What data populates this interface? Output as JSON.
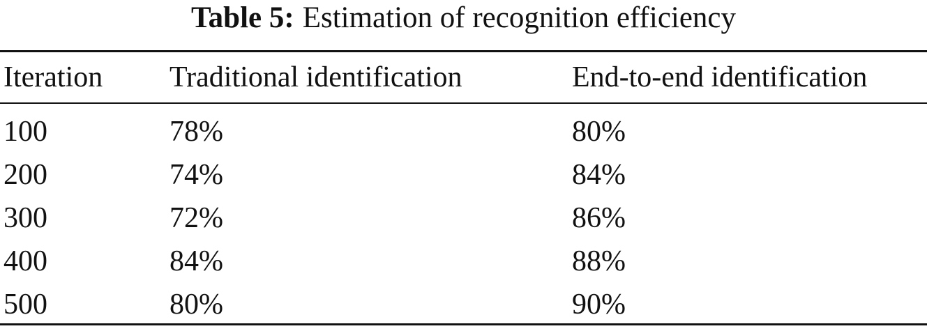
{
  "caption": {
    "label": "Table 5:",
    "text": "Estimation of recognition efficiency"
  },
  "table": {
    "header": [
      "Iteration",
      "Traditional identification",
      "End-to-end identification"
    ],
    "rows": [
      [
        "100",
        "78%",
        "80%"
      ],
      [
        "200",
        "74%",
        "84%"
      ],
      [
        "300",
        "72%",
        "86%"
      ],
      [
        "400",
        "84%",
        "88%"
      ],
      [
        "500",
        "80%",
        "90%"
      ]
    ]
  }
}
